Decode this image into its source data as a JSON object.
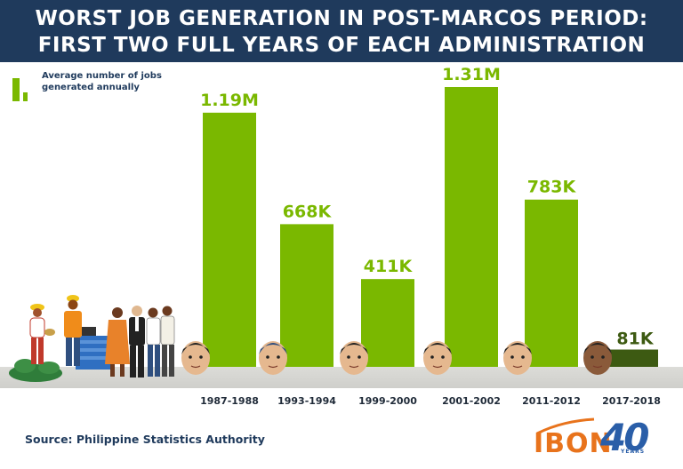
{
  "header": {
    "line1": "WORST JOB GENERATION IN POST-MARCOS PERIOD:",
    "line2": "FIRST TWO FULL YEARS OF EACH ADMINISTRATION"
  },
  "legend": {
    "label": "Average number of jobs generated annually"
  },
  "footer": {
    "source": "Source: Philippine Statistics Authority",
    "logo_text": "IBON",
    "anniversary_mark": "40",
    "anniversary_sub": "YEARS"
  },
  "colors": {
    "bar": "#7ab800",
    "bar_lowest": "#3d5a12",
    "header_bg": "#1f3a5c",
    "logo_orange": "#e8731c",
    "logo_blue": "#2a5ea8"
  },
  "chart_data": {
    "type": "bar",
    "categories": [
      "1987-1988",
      "1993-1994",
      "1999-2000",
      "2001-2002",
      "2011-2012",
      "2017-2018"
    ],
    "values": [
      1190000,
      668000,
      411000,
      1310000,
      783000,
      81000
    ],
    "value_labels": [
      "1.19M",
      "668K",
      "411K",
      "1.31M",
      "783K",
      "81K"
    ],
    "ylim": [
      0,
      1310000
    ],
    "grid": false,
    "legend_placement": "top-left"
  }
}
